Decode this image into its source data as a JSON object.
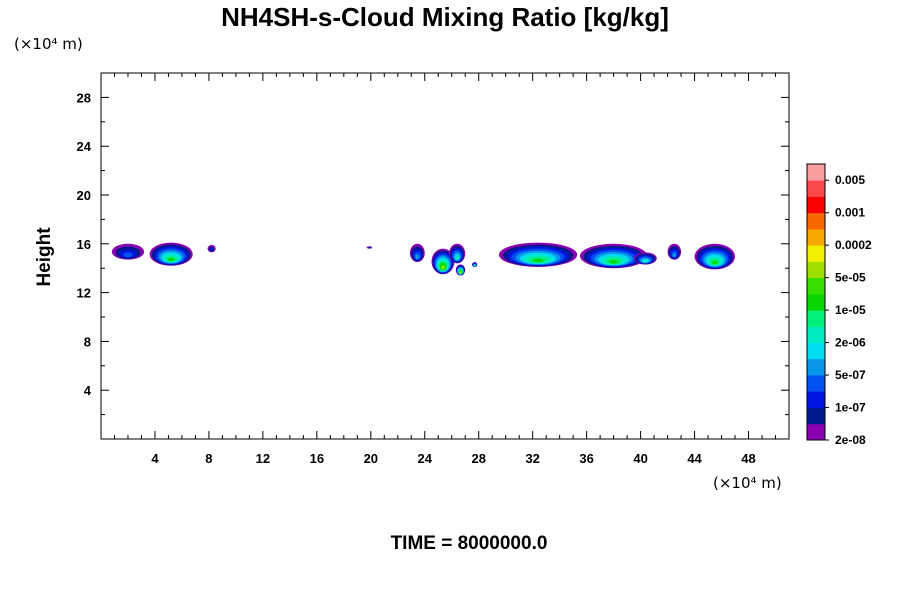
{
  "chart_data": {
    "type": "heatmap",
    "title": "NH4SH-s-Cloud Mixing Ratio [kg/kg]",
    "ylabel": "Height",
    "y_unit_label": "(×10⁴ m)",
    "x_unit_label": "(×10⁴ m)",
    "xlim": [
      0,
      51
    ],
    "ylim": [
      0,
      30
    ],
    "x_ticks": [
      4,
      8,
      12,
      16,
      20,
      24,
      28,
      32,
      36,
      40,
      44,
      48
    ],
    "y_ticks": [
      4,
      8,
      12,
      16,
      20,
      24,
      28
    ],
    "time_label": "TIME = 8000000.0",
    "colorbar": {
      "labels": [
        "0.005",
        "0.001",
        "0.0002",
        "5e-05",
        "1e-05",
        "2e-06",
        "5e-07",
        "1e-07",
        "2e-08"
      ],
      "colors": [
        "#8a00b0",
        "#001a8c",
        "#0014e0",
        "#0050f0",
        "#0a96ea",
        "#00dcf0",
        "#00ecc0",
        "#00f078",
        "#08d800",
        "#38e000",
        "#a0e000",
        "#f0f000",
        "#f8a800",
        "#f86800",
        "#f80000",
        "#f84848",
        "#f8a0a0"
      ]
    },
    "clouds": [
      {
        "x": [
          0.8,
          3.2
        ],
        "y": [
          14.7,
          16.0
        ],
        "peak": 3
      },
      {
        "x": [
          3.6,
          6.8
        ],
        "y": [
          14.2,
          16.1
        ],
        "peak": 8
      },
      {
        "x": [
          7.9,
          8.5
        ],
        "y": [
          15.3,
          15.9
        ],
        "peak": 2
      },
      {
        "x": [
          19.7,
          20.1
        ],
        "y": [
          15.6,
          15.8
        ],
        "peak": 1
      },
      {
        "x": [
          22.9,
          24.0
        ],
        "y": [
          14.5,
          16.0
        ],
        "peak": 4
      },
      {
        "x": [
          24.5,
          26.2
        ],
        "y": [
          13.5,
          15.6
        ],
        "peak": 10
      },
      {
        "x": [
          25.8,
          27.0
        ],
        "y": [
          14.4,
          16.0
        ],
        "peak": 6
      },
      {
        "x": [
          26.3,
          27.0
        ],
        "y": [
          13.4,
          14.3
        ],
        "peak": 11
      },
      {
        "x": [
          27.5,
          27.9
        ],
        "y": [
          14.1,
          14.5
        ],
        "peak": 7
      },
      {
        "x": [
          29.5,
          35.3
        ],
        "y": [
          14.1,
          16.1
        ],
        "peak": 8
      },
      {
        "x": [
          35.5,
          40.5
        ],
        "y": [
          14.0,
          16.0
        ],
        "peak": 8
      },
      {
        "x": [
          39.5,
          41.2
        ],
        "y": [
          14.3,
          15.3
        ],
        "peak": 6
      },
      {
        "x": [
          42.0,
          43.0
        ],
        "y": [
          14.7,
          16.0
        ],
        "peak": 4
      },
      {
        "x": [
          44.0,
          47.0
        ],
        "y": [
          13.9,
          16.0
        ],
        "peak": 8
      }
    ]
  }
}
